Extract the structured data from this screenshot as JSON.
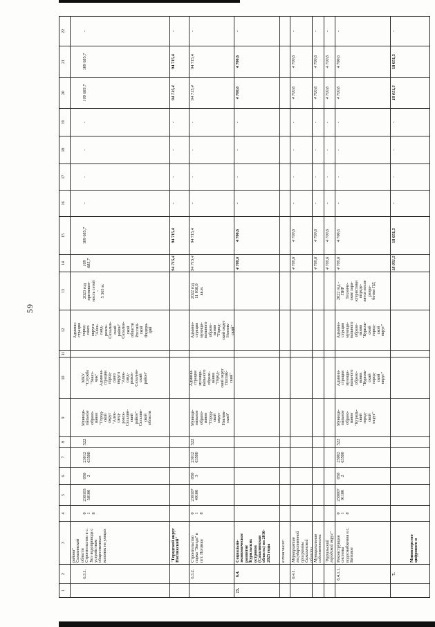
{
  "page": {
    "number": "59"
  },
  "table": {
    "header_cols": [
      "1",
      "2",
      "3",
      "4",
      "5",
      "6",
      "7",
      "8",
      "9",
      "10",
      "11",
      "12",
      "13",
      "14",
      "15",
      "16",
      "17",
      "18",
      "19",
      "20",
      "21",
      "22"
    ],
    "rows": [
      {
        "id": "row-6-3-1",
        "pad": 18,
        "pads": {
          "3": 2,
          "9": 16,
          "10": 16,
          "12": 4
        },
        "cells": {
          "2": "6.3.1.",
          "3": "района\"\nСахалинской\nобласти\nСтроительство в с.\nХоэ водопровода с\nустройством\nобщественных\nколонок на улицах",
          "4": "0\n1\n8",
          "5": "230103\n58100",
          "6": "050\n2",
          "7": "23012\n63500",
          "8": "522",
          "9": "Муници-\nпальное\nобразо-\nвание\n\"Город-\nской\nокруг\n\"Алек-\nсанд-\nровск-\nСахалин-\nский\nрайон\"\nСахалин-\nской\nобласти",
          "10": "МКУ\n\"Служба\n\"Заказ-\nчик\"\nАдмини-\nстрации\nгород-\nского\nокруга\n\"Алек-\nсанд-\nровск-\nСахалин-\nский\nрайон\"",
          "12": "Админи-\nстрация\nгород-\nского\nокруга\n\"Алек-\nсанд-\nровск-\nСахалин-\nский\nрайон\"\nСахалин-\nской\nобласти\nРоссий-\nской\nФедера-\nции",
          "13": "2023 год\nпротяжен-\nность сетей\n-\n5 365 м.",
          "14": "109 685,7",
          "15": "109 685,7",
          "16": "-",
          "17": "-",
          "18": "-",
          "19": "-",
          "20": "109 685,7",
          "21": "109 685,7",
          "22": "-"
        }
      },
      {
        "id": "row-go-noglikskiy",
        "bold": true,
        "cells": {
          "3": "\"Городской округ\nНогликский\"",
          "14": "94 715,4",
          "15": "94 715,4",
          "16": "-",
          "17": "-",
          "18": "-",
          "19": "-",
          "20": "94 715,4",
          "21": "94 715,4",
          "22": "-"
        }
      },
      {
        "id": "row-6-3-2",
        "pads": {
          "10": 0
        },
        "cells": {
          "2": "6.3.2.",
          "3": "Строительство\nпарка \"Звезда\" в\nпгт. Ноглики",
          "4": "0\n1\n8",
          "5": "230107\n49100",
          "6": "050\n3",
          "7": "23012\n63500",
          "8": "522",
          "9": "Муници-\nпальное\nобразо-\nвание\n\"Город-\nской\nокруг\nНоглик-\nский\"",
          "10": "Админи-\nстрация\nмуници-\nпального\nобразо-\nвания\n\"Город-\nской округ\nНоглик-\nский\"",
          "12": "Админи-\nстрация\nмуници-\nпального\nобразо-\nвания\n\"Город-\nской округ\nНоглик-\nский\"",
          "13": "2022 год\n11 038,0\nкв.м.",
          "14": "94 715,4",
          "15": "94 715,4",
          "16": "-",
          "17": "-",
          "18": "-",
          "19": "-",
          "20": "94 715,4",
          "21": "94 715,4",
          "22": "-"
        }
      },
      {
        "id": "row-6-4",
        "bold": true,
        "cells": {
          "1": "25.",
          "2": "6.4.",
          "3": "Социально-\nэкономическое\nразвитие\nКурильских\nостровов\n(Сахалинская\nобласть) на 2016-\n2025 годы",
          "14": "4 700,6",
          "15": "4 700,6",
          "16": "-",
          "17": "-",
          "18": "-",
          "19": "-",
          "20": "4 700,6",
          "21": "4 700,6",
          "22": "-"
        }
      },
      {
        "id": "row-v-tom-chisle",
        "italic": true,
        "cells": {
          "3": "в том числе:"
        }
      },
      {
        "id": "row-6-4-1",
        "italic": true,
        "cells": {
          "2": "6.4.1.",
          "3": "Мероприятия\nгосударственной\nпрограммы\nСахалинской\nобласти",
          "14": "4 700,6",
          "15": "4 700,6",
          "16": "-",
          "17": "-",
          "18": "-",
          "19": "-",
          "20": "4 700,6",
          "21": "4 700,6",
          "22": "-"
        }
      },
      {
        "id": "row-mun-sobstvennost",
        "italic": true,
        "cells": {
          "3": "Муниципальная\nсобственность",
          "14": "4 700,6",
          "15": "4 700,6",
          "16": "-",
          "17": "-",
          "18": "-",
          "19": "-",
          "20": "4 700,6",
          "21": "4 700,6",
          "22": "-"
        }
      },
      {
        "id": "row-kurilskiy-go",
        "italic": true,
        "cells": {
          "3": "\"Курильский\nгородской округ\"",
          "14": "4 700,6",
          "15": "4 700,6",
          "16": "-",
          "17": "-",
          "18": "-",
          "19": "-",
          "20": "4 700,6",
          "21": "4 700,6",
          "22": "-"
        }
      },
      {
        "id": "row-6-4-1-1",
        "cells": {
          "2": "6.4.1.1.",
          "3": "Реконструкция\nсистемы\nводоснабжения в с.\nКитовое",
          "4": "0\n1\n8",
          "5": "250007\n91100",
          "6": "050\n2",
          "7": "25002\n63500",
          "8": "522",
          "9": "Муници-\nпальное\nобразо-\nвание\n\"Куриль-\nский\nгород-\nской\nокруг\"",
          "10": "Админи-\nстрация\nмуници-\nпального\nобразо-\nвания\n\"Куриль-\nский\nгород-\nской\nокруг\"",
          "12": "Админи-\nстрация\nмуници-\nпального\nобразо-\nвания\n\"Куриль-\nский\nгород-\nской\nокруг\"",
          "13": "2022 год -\nПИР\nТехниче-\nские хара-\nктеристики\nопреде-\nлятся после\nразра-\nботки ПД",
          "14": "4 700,6",
          "15": "4 700,6",
          "16": "-",
          "17": "-",
          "18": "-",
          "19": "-",
          "20": "4 700,6",
          "21": "4 700,6",
          "22": "-"
        }
      },
      {
        "id": "row-7",
        "bold": true,
        "pads": {
          "3": 28
        },
        "cells": {
          "2": "7.",
          "3": "Министерство\nцифрового и",
          "14": "18 051,5",
          "15": "18 051,5",
          "16": "-",
          "17": "-",
          "18": "-",
          "19": "-",
          "20": "18 051,5",
          "21": "18 051,5",
          "22": "-"
        }
      }
    ]
  }
}
